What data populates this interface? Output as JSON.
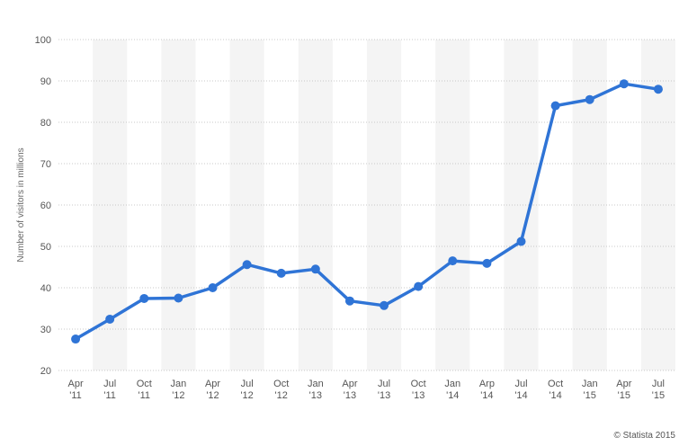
{
  "chart_data": {
    "type": "line",
    "title": "",
    "ylabel": "Number of visitors in millions",
    "ylim": [
      20,
      100
    ],
    "yticks": [
      20,
      30,
      40,
      50,
      60,
      70,
      80,
      90,
      100
    ],
    "grid": true,
    "color": "#2f74d6",
    "categories": [
      [
        "Apr",
        "'11"
      ],
      [
        "Jul",
        "'11"
      ],
      [
        "Oct",
        "'11"
      ],
      [
        "Jan",
        "'12"
      ],
      [
        "Apr",
        "'12"
      ],
      [
        "Jul",
        "'12"
      ],
      [
        "Oct",
        "'12"
      ],
      [
        "Jan",
        "'13"
      ],
      [
        "Apr",
        "'13"
      ],
      [
        "Jul",
        "'13"
      ],
      [
        "Oct",
        "'13"
      ],
      [
        "Jan",
        "'14"
      ],
      [
        "Arp",
        "'14"
      ],
      [
        "Jul",
        "'14"
      ],
      [
        "Oct",
        "'14"
      ],
      [
        "Jan",
        "'15"
      ],
      [
        "Apr",
        "'15"
      ],
      [
        "Jul",
        "'15"
      ]
    ],
    "series": [
      {
        "values": [
          27.6,
          32.4,
          37.4,
          37.5,
          40.0,
          45.6,
          43.5,
          44.5,
          36.8,
          35.7,
          40.3,
          46.5,
          45.9,
          51.2,
          84.0,
          85.5,
          89.3,
          88.0
        ]
      }
    ]
  },
  "credit": "© Statista 2015"
}
